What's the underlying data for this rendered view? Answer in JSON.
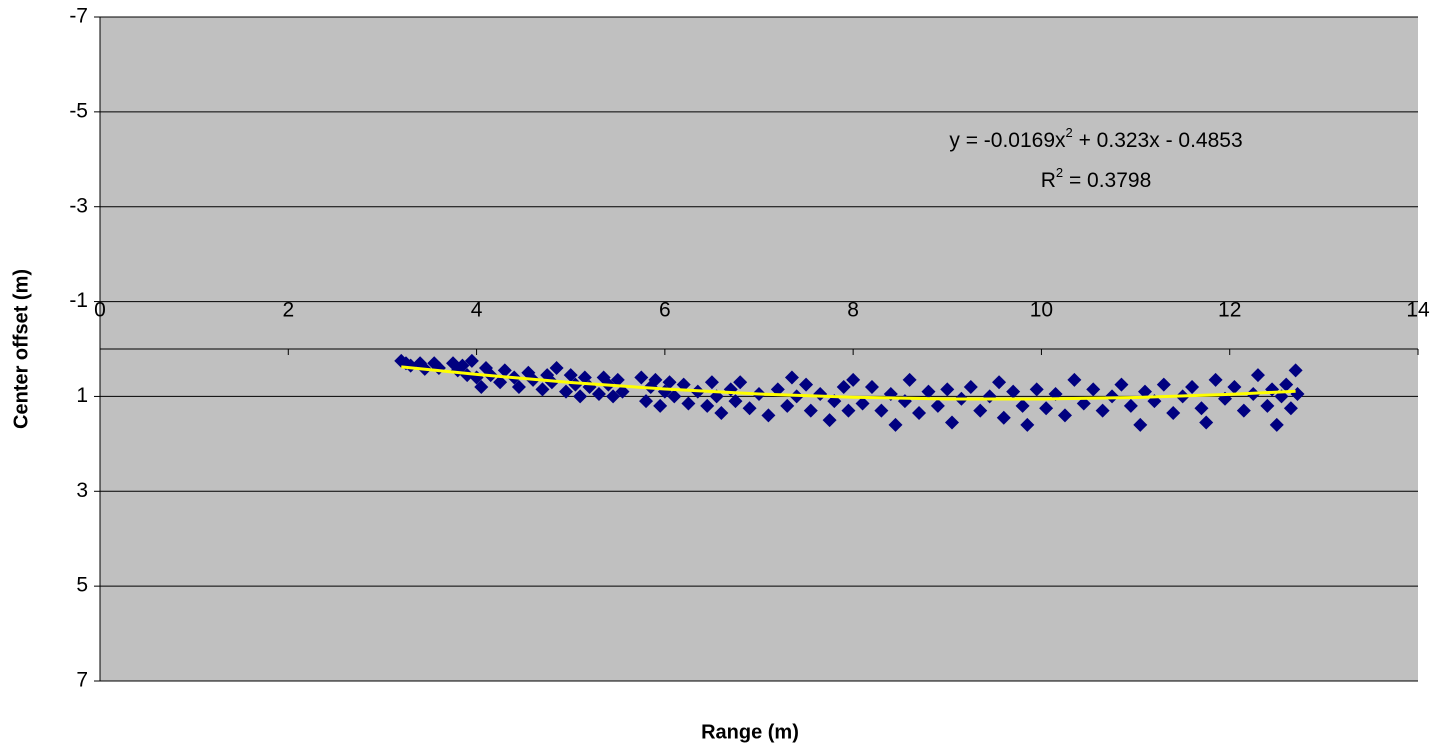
{
  "chart_data": {
    "type": "scatter",
    "x_label": "Range (m)",
    "y_label": "Center offset (m)",
    "xlim": [
      0,
      14
    ],
    "xticks": [
      0,
      2,
      4,
      6,
      8,
      10,
      12,
      14
    ],
    "ylim": [
      -7,
      7
    ],
    "yticks": [
      -7,
      -5,
      -3,
      -1,
      1,
      3,
      5,
      7
    ],
    "y_inverted": true,
    "grid": true,
    "background": "#c0c0c0",
    "series": [
      {
        "color": "#000080",
        "marker": "diamond",
        "x": [
          3.2,
          3.25,
          3.3,
          3.4,
          3.45,
          3.55,
          3.6,
          3.75,
          3.8,
          3.85,
          3.9,
          3.95,
          4.0,
          4.05,
          4.1,
          4.15,
          4.25,
          4.3,
          4.4,
          4.45,
          4.55,
          4.6,
          4.7,
          4.75,
          4.8,
          4.85,
          4.95,
          5.0,
          5.05,
          5.1,
          5.15,
          5.2,
          5.3,
          5.35,
          5.4,
          5.45,
          5.5,
          5.55,
          5.75,
          5.8,
          5.85,
          5.9,
          5.95,
          6.0,
          6.05,
          6.1,
          6.2,
          6.25,
          6.35,
          6.45,
          6.5,
          6.55,
          6.6,
          6.7,
          6.75,
          6.8,
          6.9,
          7.0,
          7.1,
          7.2,
          7.3,
          7.35,
          7.4,
          7.5,
          7.55,
          7.65,
          7.75,
          7.8,
          7.9,
          7.95,
          8.0,
          8.1,
          8.2,
          8.3,
          8.4,
          8.45,
          8.55,
          8.6,
          8.7,
          8.8,
          8.9,
          9.0,
          9.05,
          9.15,
          9.25,
          9.35,
          9.45,
          9.55,
          9.6,
          9.7,
          9.8,
          9.85,
          9.95,
          10.05,
          10.15,
          10.25,
          10.35,
          10.45,
          10.55,
          10.65,
          10.75,
          10.85,
          10.95,
          11.05,
          11.1,
          11.2,
          11.3,
          11.4,
          11.5,
          11.6,
          11.7,
          11.75,
          11.85,
          11.95,
          12.05,
          12.15,
          12.25,
          12.3,
          12.4,
          12.45,
          12.5,
          12.55,
          12.6,
          12.65,
          12.7,
          12.72
        ],
        "values": [
          0.25,
          0.3,
          0.35,
          0.3,
          0.42,
          0.3,
          0.4,
          0.3,
          0.45,
          0.35,
          0.55,
          0.25,
          0.6,
          0.8,
          0.4,
          0.55,
          0.7,
          0.45,
          0.6,
          0.8,
          0.5,
          0.65,
          0.85,
          0.55,
          0.7,
          0.4,
          0.9,
          0.55,
          0.75,
          1.0,
          0.6,
          0.8,
          0.95,
          0.6,
          0.75,
          1.0,
          0.65,
          0.9,
          0.6,
          1.1,
          0.8,
          0.65,
          1.2,
          0.9,
          0.7,
          1.0,
          0.75,
          1.15,
          0.9,
          1.2,
          0.7,
          1.0,
          1.35,
          0.85,
          1.1,
          0.7,
          1.25,
          0.95,
          1.4,
          0.85,
          1.2,
          0.6,
          1.0,
          0.75,
          1.3,
          0.95,
          1.5,
          1.1,
          0.8,
          1.3,
          0.65,
          1.15,
          0.8,
          1.3,
          0.95,
          1.6,
          1.1,
          0.65,
          1.35,
          0.9,
          1.2,
          0.85,
          1.55,
          1.05,
          0.8,
          1.3,
          1.0,
          0.7,
          1.45,
          0.9,
          1.2,
          1.6,
          0.85,
          1.25,
          0.95,
          1.4,
          0.65,
          1.15,
          0.85,
          1.3,
          1.0,
          0.75,
          1.2,
          1.6,
          0.9,
          1.1,
          0.75,
          1.35,
          1.0,
          0.8,
          1.25,
          1.55,
          0.65,
          1.05,
          0.8,
          1.3,
          0.95,
          0.55,
          1.2,
          0.85,
          1.6,
          1.0,
          0.75,
          1.25,
          0.45,
          0.95
        ]
      }
    ],
    "trendline": {
      "color": "#ffff00",
      "x": [
        3.2,
        4,
        5,
        6,
        7,
        8,
        9,
        10,
        11,
        12,
        12.7
      ],
      "values": [
        0.376,
        0.536,
        0.707,
        0.844,
        0.948,
        1.018,
        1.053,
        1.055,
        1.023,
        0.957,
        0.891
      ]
    },
    "annotations": [
      {
        "parts": [
          "y = -0.0169x",
          "2",
          " + 0.323x - 0.4853"
        ]
      },
      {
        "parts": [
          "R",
          "2",
          " = 0.3798"
        ]
      }
    ]
  }
}
